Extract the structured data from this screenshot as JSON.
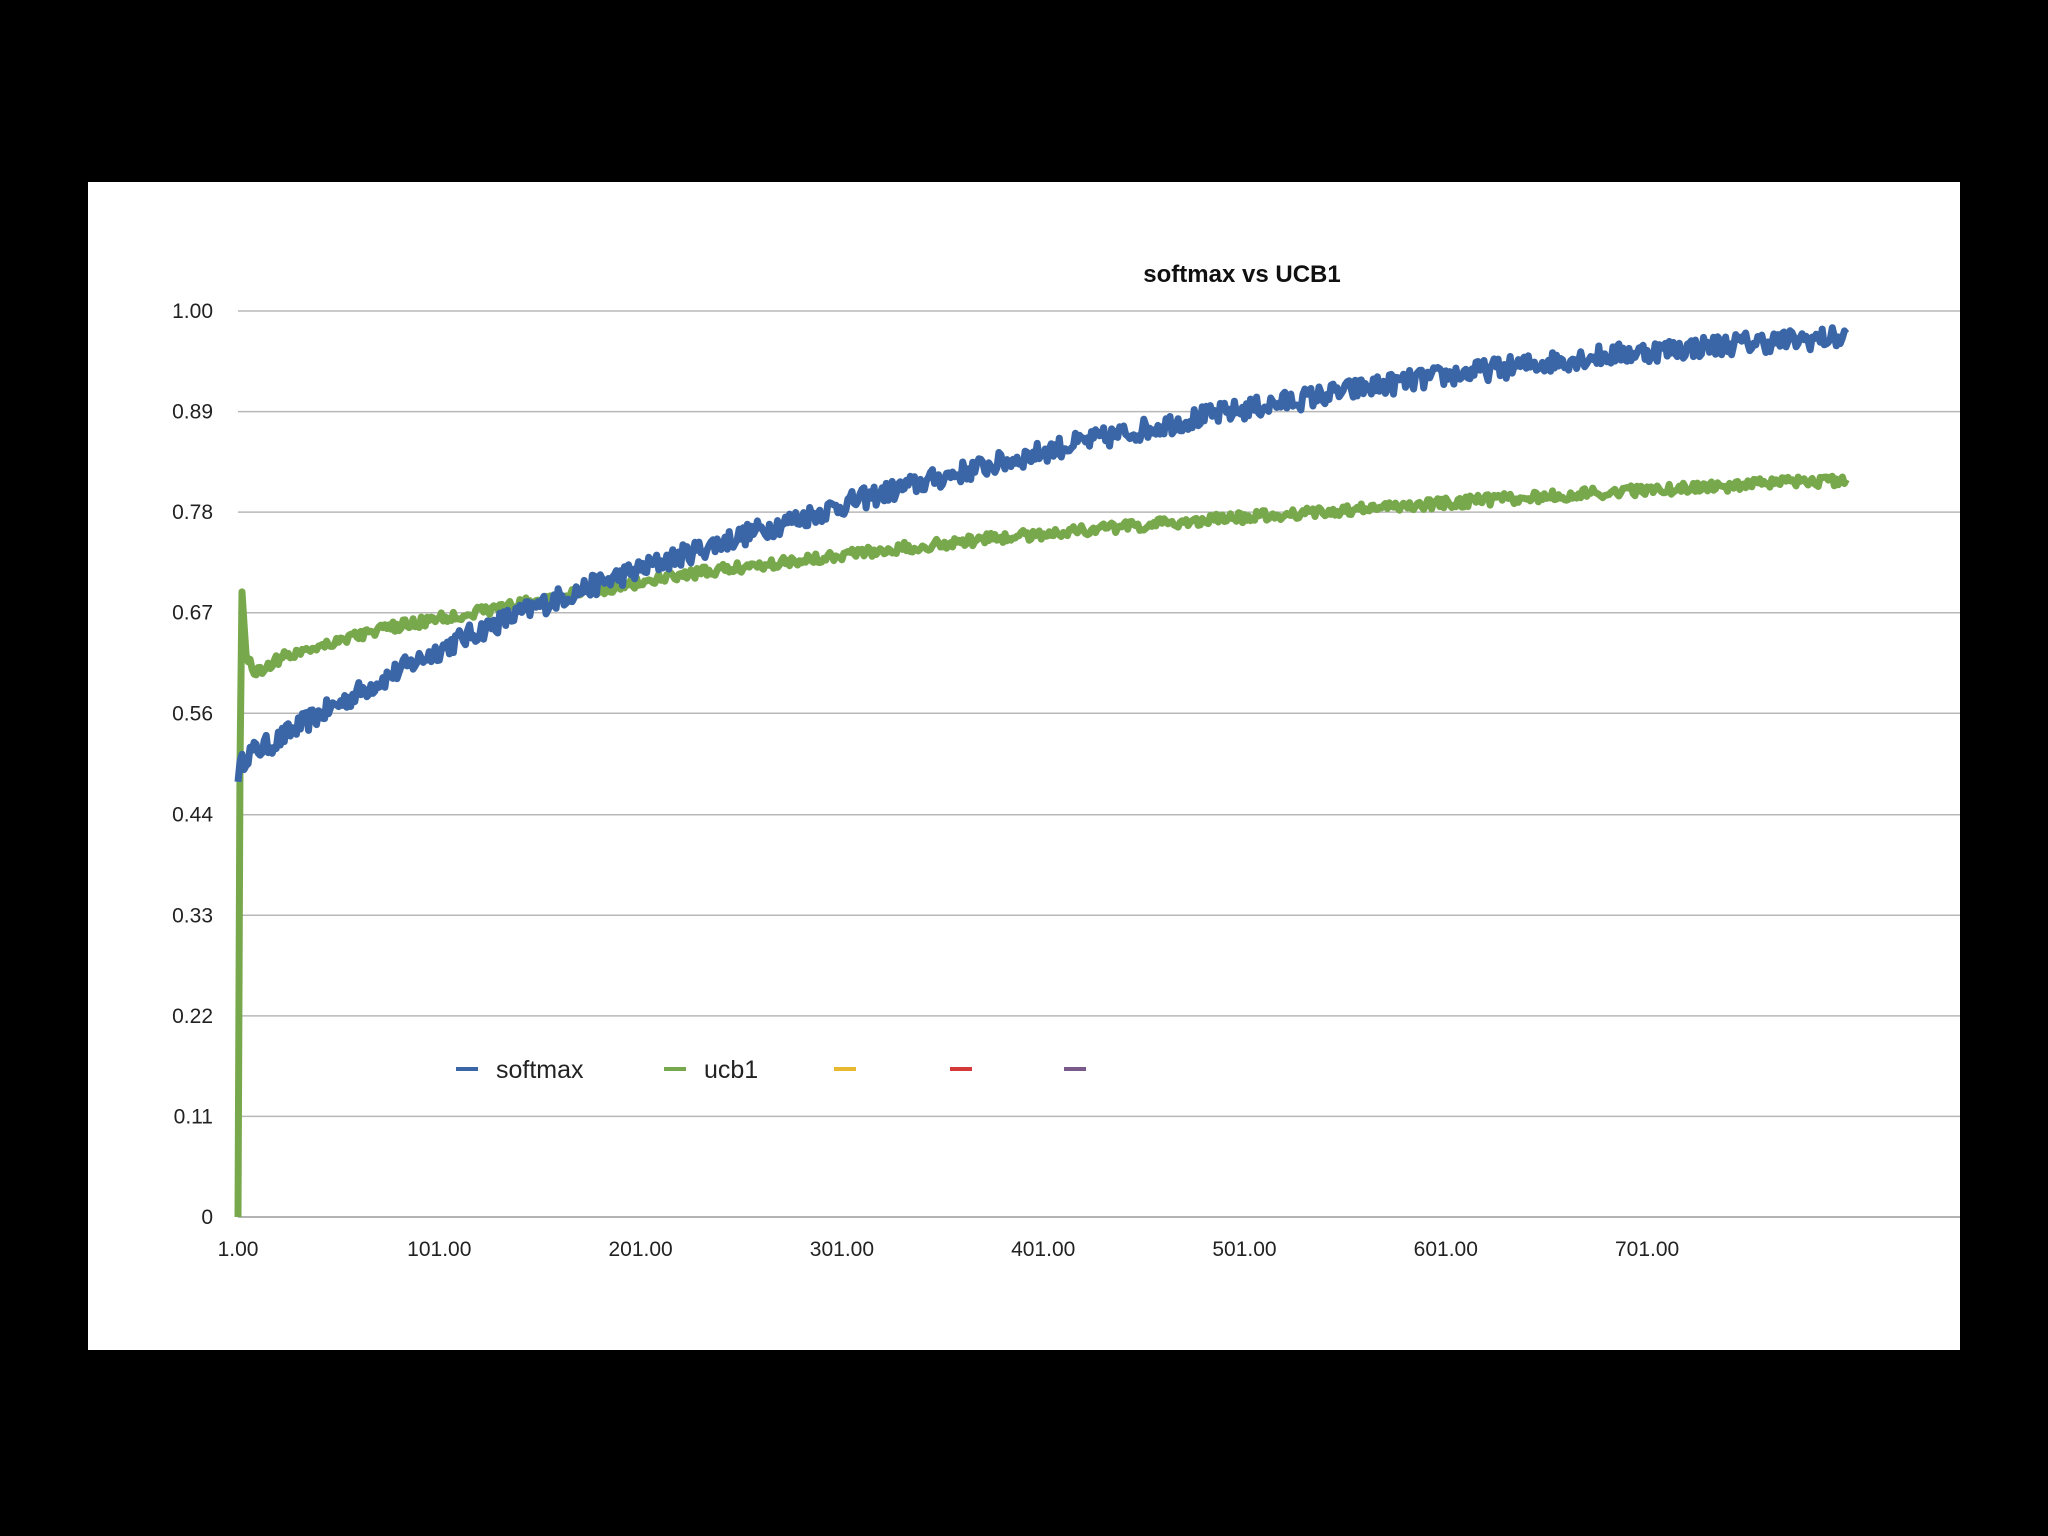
{
  "chart_data": {
    "type": "line",
    "title": "softmax vs UCB1",
    "xlabel": "",
    "ylabel": "",
    "xlim": [
      1,
      851
    ],
    "ylim": [
      0,
      1.0
    ],
    "x_ticks": [
      "1.00",
      "101.00",
      "201.00",
      "301.00",
      "401.00",
      "501.00",
      "601.00",
      "701.00"
    ],
    "x_tick_values": [
      1,
      101,
      201,
      301,
      401,
      501,
      601,
      701
    ],
    "y_ticks": [
      "0",
      "0.11",
      "0.22",
      "0.33",
      "0.44",
      "0.56",
      "0.67",
      "0.78",
      "0.89",
      "1.00"
    ],
    "y_tick_values": [
      0,
      0.111,
      0.222,
      0.333,
      0.444,
      0.556,
      0.667,
      0.778,
      0.889,
      1.0
    ],
    "grid": true,
    "legend_position": "lower-left inside plot",
    "series": [
      {
        "name": "softmax",
        "color": "#3a66a7",
        "x": [
          1,
          5,
          10,
          20,
          30,
          40,
          50,
          60,
          70,
          80,
          90,
          100,
          110,
          120,
          130,
          140,
          150,
          160,
          175,
          190,
          200,
          210,
          225,
          240,
          250,
          260,
          275,
          290,
          300,
          310,
          325,
          340,
          350,
          360,
          375,
          390,
          400,
          410,
          425,
          440,
          450,
          460,
          475,
          490,
          500,
          510,
          525,
          540,
          550,
          560,
          575,
          590,
          600,
          610,
          625,
          640,
          650,
          660,
          675,
          690,
          700,
          710,
          725,
          740,
          750,
          760,
          775,
          790,
          800
        ],
        "y": [
          0.49,
          0.51,
          0.515,
          0.525,
          0.54,
          0.553,
          0.565,
          0.578,
          0.59,
          0.602,
          0.614,
          0.625,
          0.636,
          0.646,
          0.656,
          0.665,
          0.674,
          0.683,
          0.695,
          0.707,
          0.714,
          0.722,
          0.733,
          0.744,
          0.751,
          0.758,
          0.768,
          0.778,
          0.785,
          0.792,
          0.801,
          0.81,
          0.816,
          0.822,
          0.83,
          0.838,
          0.844,
          0.85,
          0.857,
          0.864,
          0.869,
          0.874,
          0.881,
          0.887,
          0.891,
          0.895,
          0.901,
          0.907,
          0.911,
          0.915,
          0.92,
          0.925,
          0.928,
          0.931,
          0.936,
          0.94,
          0.943,
          0.946,
          0.95,
          0.953,
          0.955,
          0.957,
          0.96,
          0.963,
          0.965,
          0.966,
          0.968,
          0.97,
          0.971
        ]
      },
      {
        "name": "ucb1",
        "color": "#78a84c",
        "x": [
          1,
          2,
          3,
          5,
          10,
          20,
          30,
          40,
          50,
          60,
          70,
          80,
          90,
          100,
          110,
          120,
          130,
          140,
          150,
          160,
          175,
          190,
          200,
          210,
          225,
          240,
          250,
          260,
          275,
          290,
          300,
          325,
          350,
          375,
          400,
          425,
          450,
          475,
          500,
          525,
          550,
          575,
          600,
          625,
          650,
          675,
          700,
          725,
          750,
          775,
          800
        ],
        "y": [
          0.0,
          0.5,
          0.69,
          0.62,
          0.6,
          0.615,
          0.623,
          0.63,
          0.636,
          0.642,
          0.647,
          0.652,
          0.656,
          0.66,
          0.664,
          0.668,
          0.672,
          0.676,
          0.68,
          0.685,
          0.69,
          0.696,
          0.7,
          0.704,
          0.709,
          0.714,
          0.717,
          0.72,
          0.724,
          0.728,
          0.731,
          0.737,
          0.743,
          0.749,
          0.754,
          0.759,
          0.763,
          0.768,
          0.772,
          0.776,
          0.78,
          0.784,
          0.788,
          0.792,
          0.795,
          0.799,
          0.802,
          0.805,
          0.808,
          0.811,
          0.813
        ]
      }
    ],
    "legend": [
      {
        "label": "softmax",
        "color": "#3a66a7"
      },
      {
        "label": "ucb1",
        "color": "#78a84c"
      },
      {
        "label": "",
        "color": "#e8b830"
      },
      {
        "label": "",
        "color": "#d43a3a"
      },
      {
        "label": "",
        "color": "#7a5a8a"
      }
    ]
  }
}
